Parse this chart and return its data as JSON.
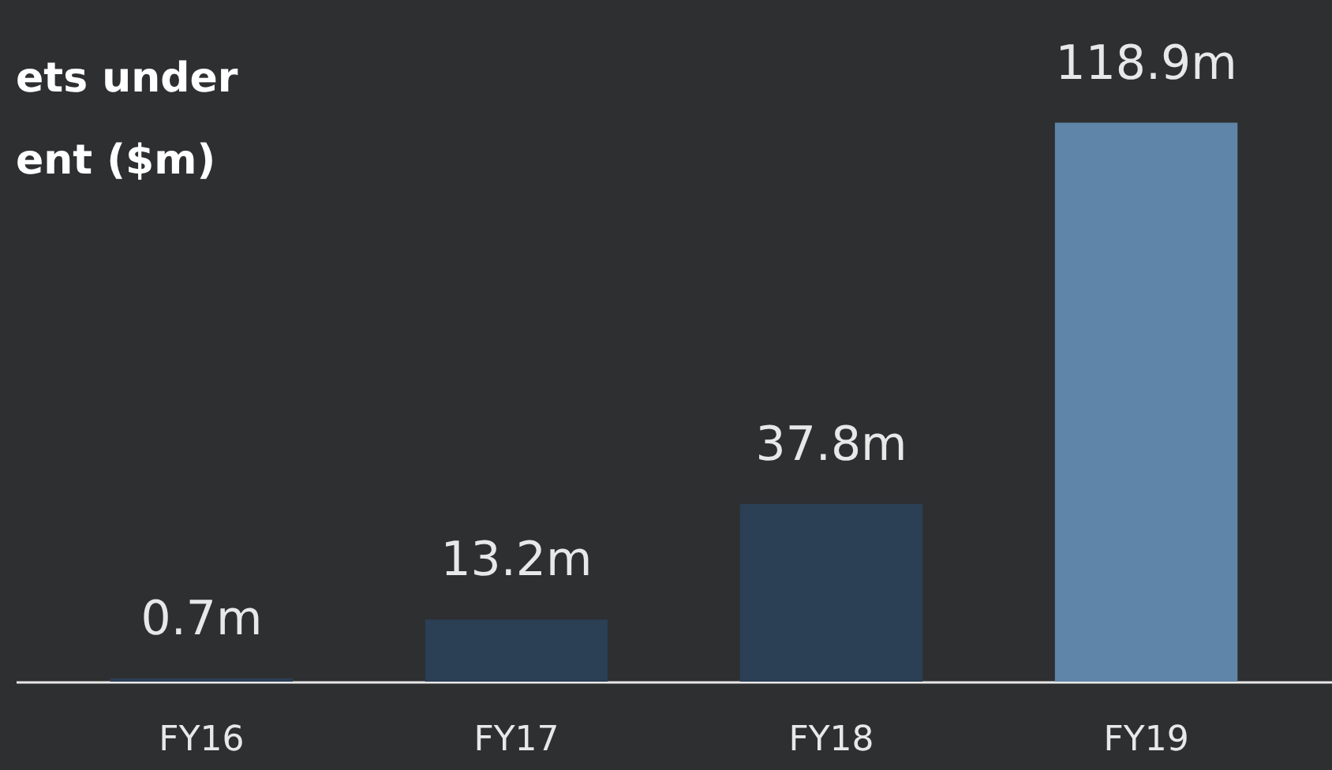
{
  "chart_data": {
    "type": "bar",
    "title": [
      "ets under",
      "ent ($m)"
    ],
    "categories": [
      "FY16",
      "FY17",
      "FY18",
      "FY19"
    ],
    "values": [
      0.7,
      13.2,
      37.8,
      118.9
    ],
    "colors": [
      "#2b3f55",
      "#2b3f55",
      "#2b3f55",
      "#5f86a8"
    ],
    "value_labels": [
      "0.7m",
      "13.2m",
      "37.8m",
      "118.9m"
    ],
    "ylim": [
      0,
      145
    ],
    "grid": false
  }
}
